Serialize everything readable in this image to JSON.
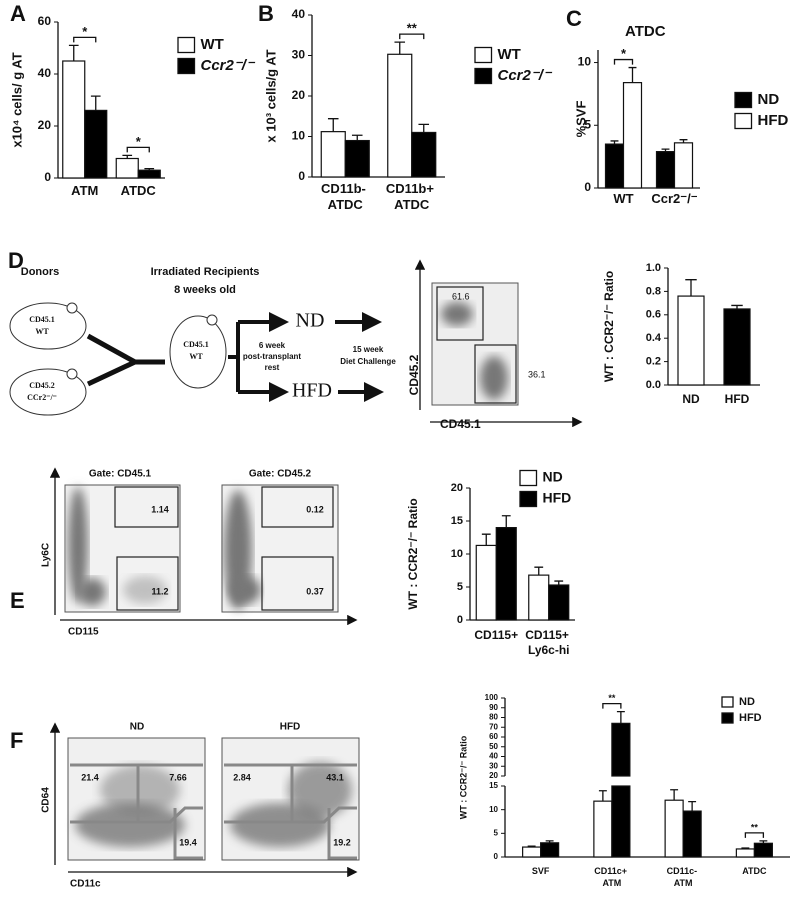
{
  "panel_labels": [
    "A",
    "B",
    "C",
    "D",
    "E",
    "F"
  ],
  "chart_data": [
    {
      "type": "bar",
      "ylabel": "x10⁴ cells/ g AT",
      "categories": [
        "ATM",
        "ATDC"
      ],
      "series": [
        {
          "name": "WT",
          "color": "#ffffff",
          "values": [
            45,
            7.5
          ],
          "errors": [
            6,
            1.2
          ]
        },
        {
          "name": "Ccr2⁻/⁻",
          "color": "#000000",
          "values": [
            26,
            3
          ],
          "errors": [
            5.5,
            0.6
          ]
        }
      ],
      "annotations": [
        "*",
        "*"
      ],
      "ylim": [
        0,
        60
      ],
      "yticks": [
        0,
        20,
        40,
        60
      ],
      "legend": "right"
    },
    {
      "type": "bar",
      "ylabel": "x 10³ cells/g AT",
      "categories": [
        "CD11b- ATDC",
        "CD11b+ ATDC"
      ],
      "series": [
        {
          "name": "WT",
          "color": "#ffffff",
          "values": [
            11.2,
            30.3
          ],
          "errors": [
            3.2,
            3
          ]
        },
        {
          "name": "Ccr2⁻/⁻",
          "color": "#000000",
          "values": [
            9,
            11
          ],
          "errors": [
            1.3,
            2
          ]
        }
      ],
      "annotations": [
        null,
        "**"
      ],
      "ylim": [
        0,
        40
      ],
      "yticks": [
        0,
        10,
        20,
        30,
        40
      ],
      "legend": "right"
    },
    {
      "type": "bar",
      "title": "ATDC",
      "ylabel": "%SVF",
      "categories": [
        "WT",
        "Ccr2⁻/⁻"
      ],
      "series": [
        {
          "name": "ND",
          "color": "#000000",
          "values": [
            3.5,
            2.9
          ],
          "errors": [
            0.25,
            0.2
          ]
        },
        {
          "name": "HFD",
          "color": "#ffffff",
          "values": [
            8.4,
            3.6
          ],
          "errors": [
            1.2,
            0.25
          ]
        }
      ],
      "annotations": [
        "*",
        null
      ],
      "ylim": [
        0,
        11
      ],
      "yticks": [
        0,
        5,
        10
      ],
      "legend": "right"
    },
    {
      "type": "bar",
      "ylabel": "WT : CCR2⁻/⁻ Ratio",
      "categories": [
        "ND",
        "HFD"
      ],
      "values": [
        0.76,
        0.65
      ],
      "errors": [
        0.14,
        0.03
      ],
      "colors": [
        "#ffffff",
        "#000000"
      ],
      "ylim": [
        0,
        1.0
      ],
      "yticks": [
        {
          "value": 0,
          "label": "0.0"
        },
        {
          "value": 0.2,
          "label": "0.2"
        },
        {
          "value": 0.4,
          "label": "0.4"
        },
        {
          "value": 0.6,
          "label": "0.6"
        },
        {
          "value": 0.8,
          "label": "0.8"
        },
        {
          "value": 1.0,
          "label": "1.0"
        }
      ]
    },
    {
      "type": "bar",
      "ylabel": "WT : CCR2⁻/⁻ Ratio",
      "categories": [
        "CD115+",
        "CD115+ Ly6c-hi"
      ],
      "series": [
        {
          "name": "ND",
          "color": "#ffffff",
          "values": [
            11.3,
            6.8
          ],
          "errors": [
            1.7,
            1.2
          ]
        },
        {
          "name": "HFD",
          "color": "#000000",
          "values": [
            14,
            5.3
          ],
          "errors": [
            1.8,
            0.6
          ]
        }
      ],
      "ylim": [
        0,
        20
      ],
      "yticks": [
        0,
        5,
        10,
        15,
        20
      ],
      "legend": "top"
    },
    {
      "type": "bar",
      "ylabel": "WT : CCR2⁻/⁻ Ratio",
      "categories": [
        "SVF",
        "CD11c+ ATM",
        "CD11c- ATM",
        "ATDC"
      ],
      "series": [
        {
          "name": "ND",
          "color": "#ffffff",
          "values": [
            2.1,
            11.8,
            12,
            1.7
          ],
          "errors": [
            0.2,
            2.2,
            2.2,
            0.2
          ]
        },
        {
          "name": "HFD",
          "color": "#000000",
          "values": [
            3,
            74,
            9.7,
            2.9
          ],
          "errors": [
            0.4,
            12,
            2,
            0.5
          ]
        }
      ],
      "annotations": [
        null,
        "**",
        null,
        "**"
      ],
      "ylim": [
        0,
        100
      ],
      "ybreak": [
        15,
        20
      ],
      "yticks": [
        0,
        5,
        10,
        15,
        20,
        30,
        40,
        50,
        60,
        70,
        80,
        90,
        100
      ],
      "legend": "top"
    }
  ],
  "schematic": {
    "donors": "Donors",
    "donor_1": [
      "CD45.1",
      "WT"
    ],
    "donor_2": [
      "CD45.2",
      "CCr2⁻/⁻"
    ],
    "recipients": [
      "Irradiated Recipients",
      "8 weeks old"
    ],
    "recipient": [
      "CD45.1",
      "WT"
    ],
    "rest": [
      "6 week",
      "post-transplant",
      "rest"
    ],
    "nd": "ND",
    "hfd": "HFD",
    "challenge": [
      "15 week",
      "Diet Challenge"
    ]
  },
  "flow_plots": {
    "D": {
      "numbers": [
        "61.6",
        "36.1"
      ],
      "y_axis": "CD45.2",
      "x_axis": "CD45.1"
    },
    "E": {
      "plots": [
        {
          "title": "Gate: CD45.1",
          "numbers": [
            "1.14",
            "11.2"
          ]
        },
        {
          "title": "Gate: CD45.2",
          "numbers": [
            "0.12",
            "0.37"
          ]
        }
      ],
      "y_axis": "Ly6C",
      "x_axis": "CD115"
    },
    "F": {
      "plots": [
        {
          "title": "ND",
          "numbers": [
            "21.4",
            "7.66",
            "19.4"
          ]
        },
        {
          "title": "HFD",
          "numbers": [
            "2.84",
            "43.1",
            "19.2"
          ]
        }
      ],
      "y_axis": "CD64",
      "x_axis": "CD11c"
    }
  }
}
